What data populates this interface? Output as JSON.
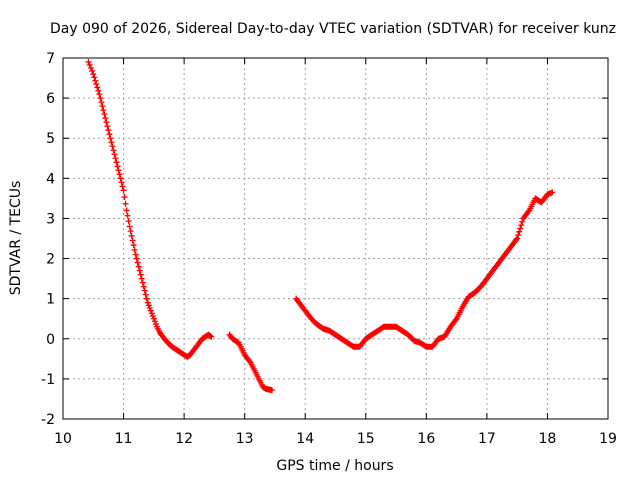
{
  "chart_data": {
    "type": "scatter",
    "title": "Day 090 of 2026, Sidereal Day-to-day VTEC variation (SDTVAR) for receiver kunz",
    "xlabel": "GPS time / hours",
    "ylabel": "SDTVAR / TECUs",
    "xlim": [
      10,
      19
    ],
    "ylim": [
      -2,
      7
    ],
    "grid": true,
    "legend": "none",
    "marker": "plus",
    "color": "#ff0000",
    "x_ticks": [
      10,
      11,
      12,
      13,
      14,
      15,
      16,
      17,
      18,
      19
    ],
    "y_ticks": [
      -2,
      -1,
      0,
      1,
      2,
      3,
      4,
      5,
      6,
      7
    ],
    "segments": [
      {
        "x": [
          10.42,
          10.5,
          10.6,
          10.7,
          10.8,
          10.9,
          11.0,
          11.05,
          11.1,
          11.2,
          11.3,
          11.4,
          11.5,
          11.55,
          11.6,
          11.7,
          11.8,
          11.9,
          12.0,
          12.05,
          12.1,
          12.2,
          12.3,
          12.4,
          12.45
        ],
        "y": [
          6.9,
          6.6,
          6.1,
          5.5,
          4.9,
          4.3,
          3.7,
          3.2,
          2.8,
          2.1,
          1.5,
          0.9,
          0.5,
          0.3,
          0.15,
          -0.05,
          -0.2,
          -0.3,
          -0.4,
          -0.45,
          -0.4,
          -0.2,
          0.0,
          0.1,
          0.05
        ]
      },
      {
        "x": [
          12.75,
          12.8,
          12.9,
          13.0,
          13.1,
          13.2,
          13.3,
          13.35,
          13.45
        ],
        "y": [
          0.1,
          0.0,
          -0.1,
          -0.4,
          -0.6,
          -0.9,
          -1.2,
          -1.25,
          -1.28
        ]
      },
      {
        "x": [
          13.85,
          13.9,
          14.0,
          14.1,
          14.2,
          14.3,
          14.4,
          14.5,
          14.6,
          14.7,
          14.8,
          14.9,
          15.0,
          15.1,
          15.2,
          15.3,
          15.4,
          15.5,
          15.6,
          15.7,
          15.8,
          15.9,
          16.0,
          16.1,
          16.2,
          16.3,
          16.4,
          16.5,
          16.6,
          16.7,
          16.8,
          16.9,
          17.0,
          17.1,
          17.2,
          17.3,
          17.4,
          17.5,
          17.6,
          17.7,
          17.8,
          17.9,
          18.0,
          18.08
        ],
        "y": [
          1.0,
          0.9,
          0.7,
          0.5,
          0.35,
          0.25,
          0.2,
          0.1,
          0.0,
          -0.1,
          -0.2,
          -0.2,
          0.0,
          0.1,
          0.2,
          0.3,
          0.3,
          0.3,
          0.2,
          0.1,
          -0.05,
          -0.1,
          -0.2,
          -0.2,
          0.0,
          0.05,
          0.3,
          0.5,
          0.8,
          1.05,
          1.15,
          1.3,
          1.5,
          1.7,
          1.9,
          2.1,
          2.3,
          2.5,
          3.0,
          3.2,
          3.5,
          3.4,
          3.6,
          3.65
        ]
      }
    ]
  }
}
